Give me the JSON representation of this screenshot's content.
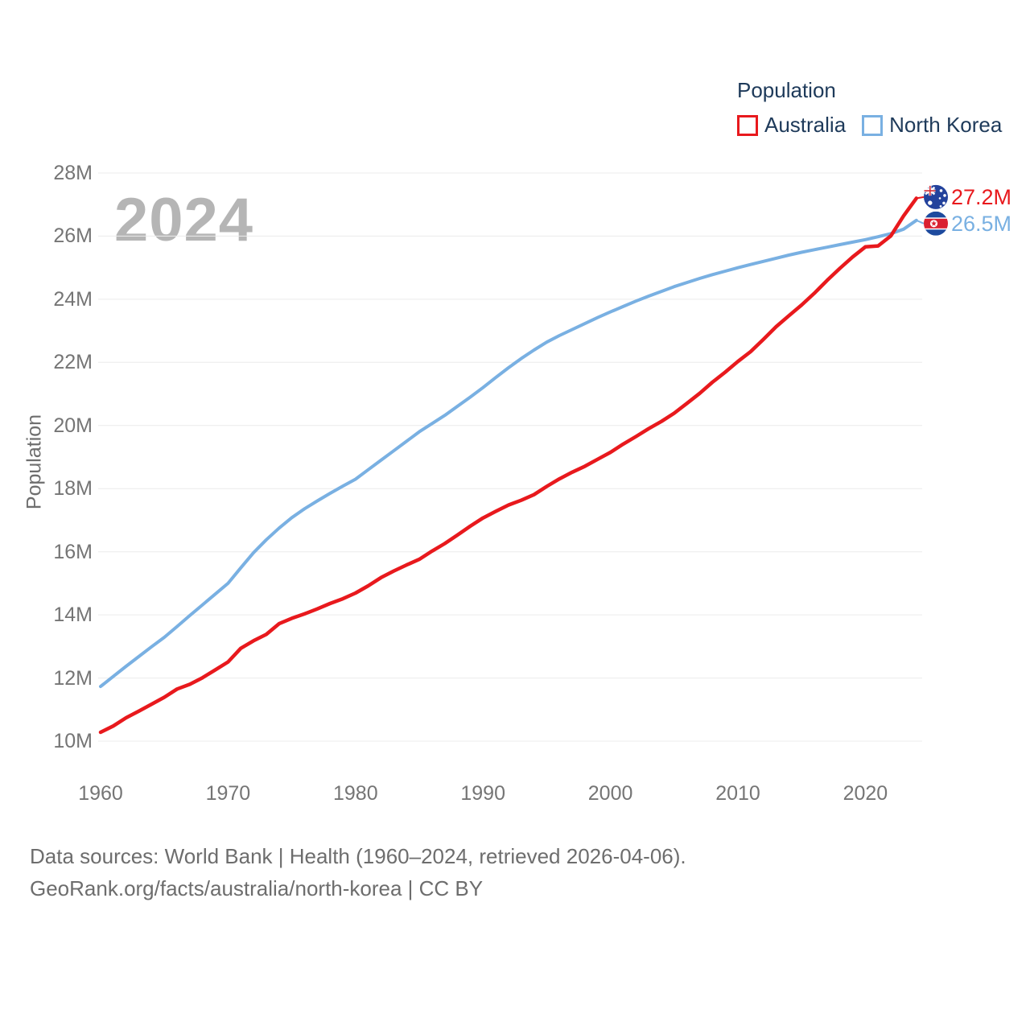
{
  "legend": {
    "title": "Population",
    "items": [
      {
        "label": "Australia"
      },
      {
        "label": "North Korea"
      }
    ]
  },
  "watermark": "2024",
  "footer": {
    "line1": "Data sources: World Bank | Health (1960–2024, retrieved 2026-04-06).",
    "line2": "GeoRank.org/facts/australia/north-korea | CC BY"
  },
  "chart_data": {
    "type": "line",
    "title": "Population",
    "ylabel": "Population",
    "xlabel": "",
    "grid": "horizontal-only",
    "legend_position": "top-right",
    "highlight_year": "2024",
    "ylim_millions": [
      10,
      28
    ],
    "y_ticks": [
      {
        "value": 10,
        "label": "10M"
      },
      {
        "value": 12,
        "label": "12M"
      },
      {
        "value": 14,
        "label": "14M"
      },
      {
        "value": 16,
        "label": "16M"
      },
      {
        "value": 18,
        "label": "18M"
      },
      {
        "value": 20,
        "label": "20M"
      },
      {
        "value": 22,
        "label": "22M"
      },
      {
        "value": 24,
        "label": "24M"
      },
      {
        "value": 26,
        "label": "26M"
      },
      {
        "value": 28,
        "label": "28M"
      }
    ],
    "x_ticks": [
      1960,
      1970,
      1980,
      1990,
      2000,
      2010,
      2020
    ],
    "years": [
      1960,
      1961,
      1962,
      1963,
      1964,
      1965,
      1966,
      1967,
      1968,
      1969,
      1970,
      1971,
      1972,
      1973,
      1974,
      1975,
      1976,
      1977,
      1978,
      1979,
      1980,
      1981,
      1982,
      1983,
      1984,
      1985,
      1986,
      1987,
      1988,
      1989,
      1990,
      1991,
      1992,
      1993,
      1994,
      1995,
      1996,
      1997,
      1998,
      1999,
      2000,
      2001,
      2002,
      2003,
      2004,
      2005,
      2006,
      2007,
      2008,
      2009,
      2010,
      2011,
      2012,
      2013,
      2014,
      2015,
      2016,
      2017,
      2018,
      2019,
      2020,
      2021,
      2022,
      2023,
      2024
    ],
    "series": [
      {
        "name": "Australia",
        "color": "#e8191d",
        "flag": "australia",
        "end_label": "27.2M",
        "end_value_millions": 27.2,
        "values_millions": [
          10.28,
          10.48,
          10.74,
          10.95,
          11.17,
          11.39,
          11.65,
          11.8,
          12.01,
          12.26,
          12.51,
          12.94,
          13.18,
          13.38,
          13.72,
          13.89,
          14.03,
          14.19,
          14.36,
          14.51,
          14.69,
          14.92,
          15.18,
          15.39,
          15.58,
          15.76,
          16.02,
          16.26,
          16.53,
          16.81,
          17.07,
          17.28,
          17.48,
          17.63,
          17.81,
          18.07,
          18.31,
          18.52,
          18.71,
          18.93,
          19.15,
          19.41,
          19.65,
          19.9,
          20.13,
          20.39,
          20.7,
          21.02,
          21.37,
          21.69,
          22.03,
          22.34,
          22.73,
          23.13,
          23.48,
          23.82,
          24.19,
          24.6,
          24.98,
          25.34,
          25.66,
          25.69,
          26.01,
          26.64,
          27.2
        ]
      },
      {
        "name": "North Korea",
        "color": "#79b0e2",
        "flag": "north-korea",
        "end_label": "26.5M",
        "end_value_millions": 26.5,
        "values_millions": [
          11.73,
          12.05,
          12.37,
          12.68,
          12.99,
          13.29,
          13.63,
          13.98,
          14.32,
          14.66,
          15.0,
          15.49,
          15.97,
          16.38,
          16.75,
          17.08,
          17.36,
          17.61,
          17.85,
          18.08,
          18.3,
          18.6,
          18.9,
          19.2,
          19.5,
          19.8,
          20.06,
          20.32,
          20.61,
          20.9,
          21.2,
          21.52,
          21.83,
          22.12,
          22.39,
          22.64,
          22.85,
          23.04,
          23.23,
          23.42,
          23.6,
          23.77,
          23.94,
          24.1,
          24.25,
          24.4,
          24.53,
          24.66,
          24.78,
          24.89,
          25.0,
          25.1,
          25.2,
          25.3,
          25.4,
          25.49,
          25.57,
          25.65,
          25.73,
          25.81,
          25.89,
          25.98,
          26.08,
          26.22,
          26.5
        ]
      }
    ]
  }
}
